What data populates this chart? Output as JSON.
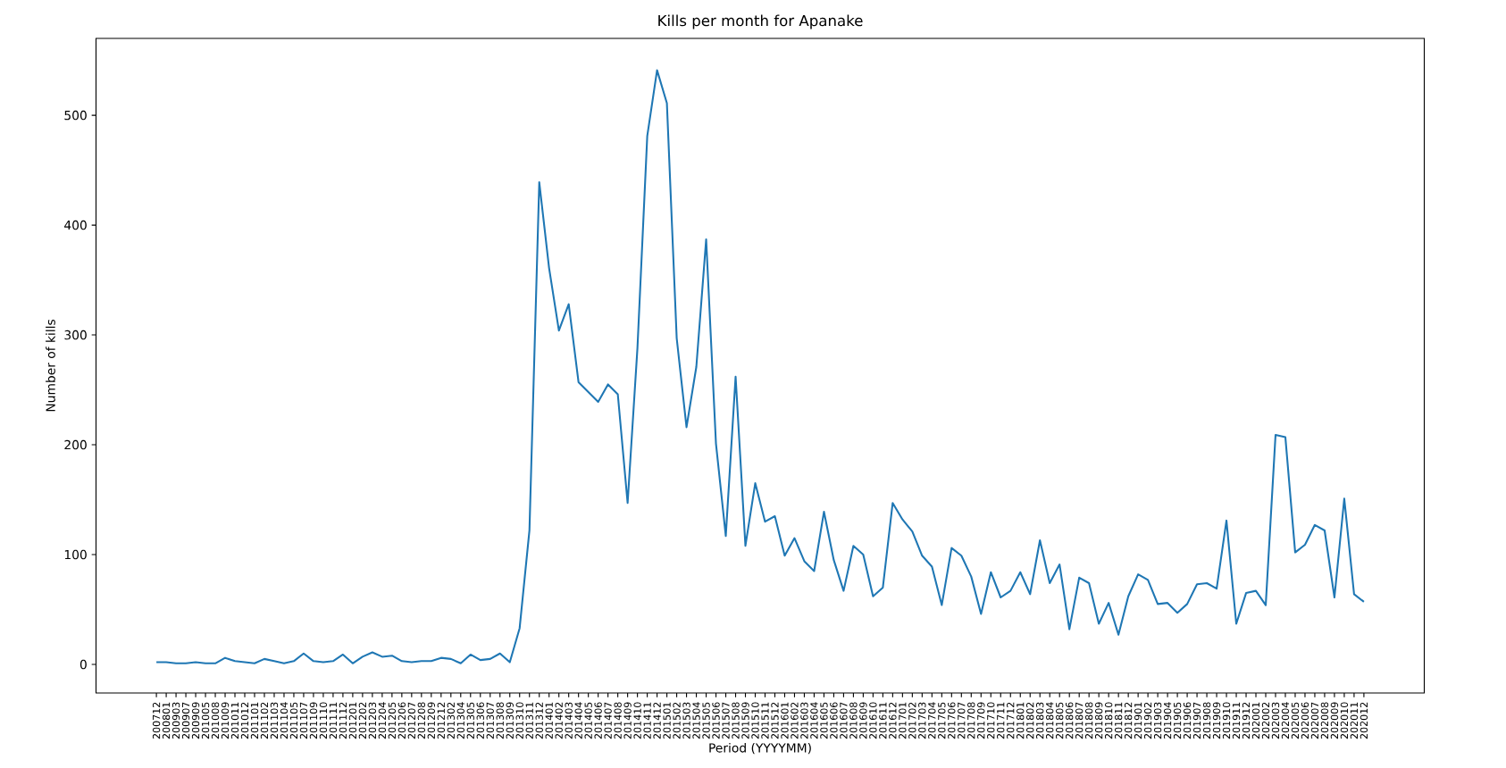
{
  "chart_data": {
    "type": "line",
    "title": "Kills per month for Apanake",
    "xlabel": "Period (YYYYMM)",
    "ylabel": "Number of kills",
    "categories": [
      "200712",
      "200801",
      "200903",
      "200907",
      "200909",
      "201005",
      "201008",
      "201009",
      "201011",
      "201012",
      "201101",
      "201102",
      "201103",
      "201104",
      "201105",
      "201107",
      "201109",
      "201110",
      "201111",
      "201112",
      "201201",
      "201202",
      "201203",
      "201204",
      "201205",
      "201206",
      "201207",
      "201208",
      "201209",
      "201212",
      "201302",
      "201304",
      "201305",
      "201306",
      "201307",
      "201308",
      "201309",
      "201310",
      "201311",
      "201312",
      "201401",
      "201402",
      "201403",
      "201404",
      "201405",
      "201406",
      "201407",
      "201408",
      "201409",
      "201410",
      "201411",
      "201412",
      "201501",
      "201502",
      "201503",
      "201504",
      "201505",
      "201506",
      "201507",
      "201508",
      "201509",
      "201510",
      "201511",
      "201512",
      "201601",
      "201602",
      "201603",
      "201604",
      "201605",
      "201606",
      "201607",
      "201608",
      "201609",
      "201610",
      "201611",
      "201612",
      "201701",
      "201702",
      "201703",
      "201704",
      "201705",
      "201706",
      "201707",
      "201708",
      "201709",
      "201710",
      "201711",
      "201712",
      "201801",
      "201802",
      "201803",
      "201804",
      "201805",
      "201806",
      "201807",
      "201808",
      "201809",
      "201810",
      "201811",
      "201812",
      "201901",
      "201902",
      "201903",
      "201904",
      "201905",
      "201906",
      "201907",
      "201908",
      "201909",
      "201910",
      "201911",
      "201912",
      "202001",
      "202002",
      "202003",
      "202004",
      "202005",
      "202006",
      "202007",
      "202008",
      "202009",
      "202010",
      "202011",
      "202012"
    ],
    "values": [
      2,
      2,
      1,
      1,
      2,
      1,
      1,
      6,
      3,
      2,
      1,
      5,
      3,
      1,
      3,
      10,
      3,
      2,
      3,
      9,
      1,
      7,
      11,
      7,
      8,
      3,
      2,
      3,
      3,
      6,
      5,
      1,
      9,
      4,
      5,
      10,
      2,
      33,
      122,
      439,
      361,
      304,
      328,
      257,
      248,
      239,
      255,
      246,
      147,
      288,
      481,
      541,
      511,
      297,
      216,
      271,
      387,
      201,
      117,
      262,
      108,
      165,
      130,
      135,
      99,
      115,
      94,
      85,
      139,
      95,
      67,
      108,
      100,
      62,
      70,
      147,
      132,
      121,
      99,
      89,
      54,
      106,
      99,
      80,
      46,
      84,
      61,
      67,
      84,
      64,
      113,
      74,
      91,
      32,
      79,
      74,
      37,
      56,
      27,
      62,
      82,
      77,
      55,
      56,
      47,
      55,
      73,
      74,
      69,
      131,
      37,
      65,
      67,
      54,
      209,
      207,
      102,
      109,
      127,
      122,
      61,
      151,
      64,
      57
    ],
    "color": "#1f77b4",
    "ylim": [
      -26,
      570
    ],
    "yticks": [
      0,
      100,
      200,
      300,
      400,
      500
    ]
  }
}
